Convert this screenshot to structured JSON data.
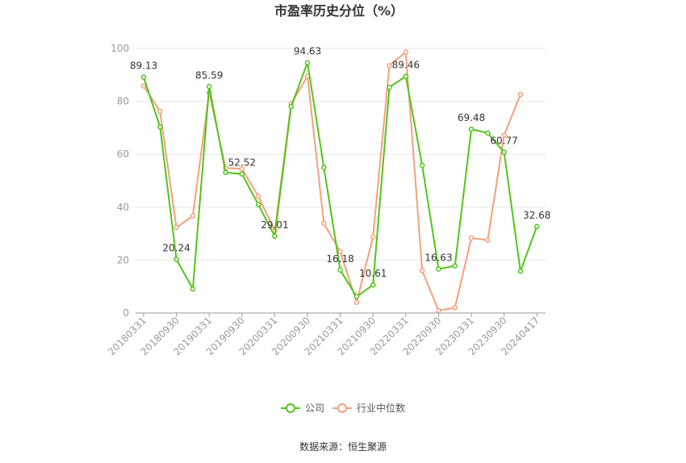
{
  "chart_data": {
    "type": "line",
    "title": "市盈率历史分位（%）",
    "x_tick_labels": [
      "20180331",
      "20180930",
      "20190331",
      "20190930",
      "20200331",
      "20200930",
      "20210331",
      "20210930",
      "20220331",
      "20220930",
      "20230331",
      "20230930",
      "20240417"
    ],
    "ylim": [
      0,
      100
    ],
    "y_ticks": [
      0,
      20,
      40,
      60,
      80,
      100
    ],
    "grid": true,
    "legend_position": "bottom-center",
    "series": [
      {
        "name": "公司",
        "color": "#52c41a",
        "values": [
          89.13,
          70.3,
          20.24,
          9.1,
          85.59,
          53.1,
          52.52,
          41.0,
          29.01,
          78.0,
          94.63,
          55.0,
          16.18,
          6.2,
          10.61,
          85.3,
          89.46,
          55.8,
          16.63,
          17.8,
          69.48,
          68.0,
          60.77,
          15.8,
          32.68
        ]
      },
      {
        "name": "行业中位数",
        "color": "#f4a07c",
        "values": [
          85.8,
          76.2,
          32.3,
          36.7,
          83.3,
          54.8,
          54.5,
          44.1,
          31.0,
          79.0,
          89.5,
          33.8,
          23.2,
          4.0,
          28.8,
          93.5,
          98.6,
          16.0,
          0.9,
          2.0,
          28.3,
          27.5,
          67.2,
          82.6,
          null
        ]
      }
    ],
    "data_labels": [
      {
        "index": 0,
        "text": "89.13"
      },
      {
        "index": 2,
        "text": "20.24"
      },
      {
        "index": 4,
        "text": "85.59"
      },
      {
        "index": 6,
        "text": "52.52"
      },
      {
        "index": 8,
        "text": "29.01"
      },
      {
        "index": 10,
        "text": "94.63"
      },
      {
        "index": 12,
        "text": "16.18"
      },
      {
        "index": 14,
        "text": "10.61"
      },
      {
        "index": 16,
        "text": "89.46"
      },
      {
        "index": 18,
        "text": "16.63"
      },
      {
        "index": 20,
        "text": "69.48"
      },
      {
        "index": 22,
        "text": "60.77"
      },
      {
        "index": 24,
        "text": "32.68"
      }
    ],
    "source": "数据来源：恒生聚源"
  }
}
